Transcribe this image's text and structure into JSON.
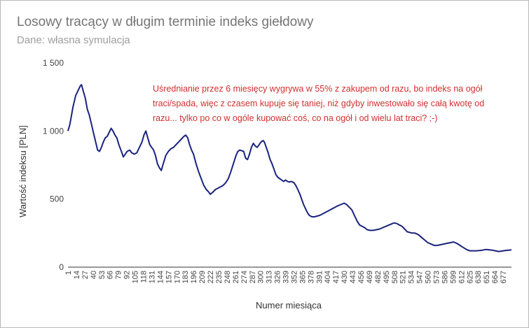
{
  "chart_data": {
    "type": "line",
    "title": "Losowy tracący w długim terminie indeks giełdowy",
    "subtitle": "Dane: własna symulacja",
    "xlabel": "Numer miesiąca",
    "ylabel": "Wartość indeksu [PLN]",
    "ylim": [
      0,
      1500
    ],
    "xlim": [
      1,
      690
    ],
    "yticks": [
      {
        "value": 0,
        "label": "0"
      },
      {
        "value": 500,
        "label": "500"
      },
      {
        "value": 1000,
        "label": "1 000"
      },
      {
        "value": 1500,
        "label": "1 500"
      }
    ],
    "xticks": [
      {
        "value": 1,
        "label": "1"
      },
      {
        "value": 14,
        "label": "14"
      },
      {
        "value": 27,
        "label": "27"
      },
      {
        "value": 40,
        "label": "40"
      },
      {
        "value": 53,
        "label": "53"
      },
      {
        "value": 66,
        "label": "66"
      },
      {
        "value": 79,
        "label": "79"
      },
      {
        "value": 92,
        "label": "92"
      },
      {
        "value": 105,
        "label": "105"
      },
      {
        "value": 118,
        "label": "118"
      },
      {
        "value": 131,
        "label": "131"
      },
      {
        "value": 144,
        "label": "144"
      },
      {
        "value": 157,
        "label": "157"
      },
      {
        "value": 170,
        "label": "170"
      },
      {
        "value": 183,
        "label": "183"
      },
      {
        "value": 196,
        "label": "196"
      },
      {
        "value": 209,
        "label": "209"
      },
      {
        "value": 222,
        "label": "222"
      },
      {
        "value": 235,
        "label": "235"
      },
      {
        "value": 248,
        "label": "248"
      },
      {
        "value": 261,
        "label": "261"
      },
      {
        "value": 274,
        "label": "274"
      },
      {
        "value": 287,
        "label": "287"
      },
      {
        "value": 300,
        "label": "300"
      },
      {
        "value": 313,
        "label": "313"
      },
      {
        "value": 326,
        "label": "326"
      },
      {
        "value": 339,
        "label": "339"
      },
      {
        "value": 352,
        "label": "352"
      },
      {
        "value": 365,
        "label": "365"
      },
      {
        "value": 378,
        "label": "378"
      },
      {
        "value": 391,
        "label": "391"
      },
      {
        "value": 404,
        "label": "404"
      },
      {
        "value": 417,
        "label": "417"
      },
      {
        "value": 430,
        "label": "430"
      },
      {
        "value": 443,
        "label": "443"
      },
      {
        "value": 456,
        "label": "456"
      },
      {
        "value": 469,
        "label": "469"
      },
      {
        "value": 482,
        "label": "482"
      },
      {
        "value": 495,
        "label": "495"
      },
      {
        "value": 508,
        "label": "508"
      },
      {
        "value": 521,
        "label": "521"
      },
      {
        "value": 534,
        "label": "534"
      },
      {
        "value": 547,
        "label": "547"
      },
      {
        "value": 560,
        "label": "560"
      },
      {
        "value": 573,
        "label": "573"
      },
      {
        "value": 586,
        "label": "586"
      },
      {
        "value": 599,
        "label": "599"
      },
      {
        "value": 612,
        "label": "612"
      },
      {
        "value": 625,
        "label": "625"
      },
      {
        "value": 638,
        "label": "638"
      },
      {
        "value": 651,
        "label": "651"
      },
      {
        "value": 664,
        "label": "664"
      },
      {
        "value": 677,
        "label": "677"
      }
    ],
    "series": [
      {
        "color": "#1a237e",
        "points": [
          [
            1,
            1000
          ],
          [
            4,
            1050
          ],
          [
            9,
            1180
          ],
          [
            13,
            1260
          ],
          [
            17,
            1300
          ],
          [
            20,
            1330
          ],
          [
            22,
            1340
          ],
          [
            25,
            1290
          ],
          [
            28,
            1240
          ],
          [
            31,
            1160
          ],
          [
            34,
            1120
          ],
          [
            37,
            1060
          ],
          [
            41,
            980
          ],
          [
            44,
            920
          ],
          [
            47,
            860
          ],
          [
            50,
            850
          ],
          [
            53,
            880
          ],
          [
            56,
            920
          ],
          [
            59,
            950
          ],
          [
            62,
            960
          ],
          [
            65,
            990
          ],
          [
            68,
            1020
          ],
          [
            71,
            1000
          ],
          [
            74,
            970
          ],
          [
            77,
            950
          ],
          [
            80,
            900
          ],
          [
            84,
            850
          ],
          [
            87,
            810
          ],
          [
            90,
            830
          ],
          [
            93,
            850
          ],
          [
            97,
            860
          ],
          [
            100,
            840
          ],
          [
            104,
            830
          ],
          [
            108,
            840
          ],
          [
            112,
            880
          ],
          [
            116,
            920
          ],
          [
            119,
            970
          ],
          [
            122,
            1000
          ],
          [
            125,
            950
          ],
          [
            128,
            900
          ],
          [
            131,
            880
          ],
          [
            134,
            860
          ],
          [
            137,
            820
          ],
          [
            140,
            760
          ],
          [
            143,
            730
          ],
          [
            146,
            710
          ],
          [
            149,
            760
          ],
          [
            153,
            820
          ],
          [
            157,
            850
          ],
          [
            161,
            870
          ],
          [
            165,
            880
          ],
          [
            169,
            900
          ],
          [
            173,
            920
          ],
          [
            177,
            940
          ],
          [
            181,
            960
          ],
          [
            184,
            970
          ],
          [
            187,
            950
          ],
          [
            190,
            900
          ],
          [
            193,
            860
          ],
          [
            196,
            830
          ],
          [
            200,
            760
          ],
          [
            204,
            700
          ],
          [
            208,
            650
          ],
          [
            212,
            600
          ],
          [
            216,
            570
          ],
          [
            220,
            550
          ],
          [
            222,
            535
          ],
          [
            226,
            550
          ],
          [
            230,
            570
          ],
          [
            234,
            580
          ],
          [
            238,
            590
          ],
          [
            242,
            600
          ],
          [
            246,
            620
          ],
          [
            250,
            650
          ],
          [
            254,
            700
          ],
          [
            258,
            760
          ],
          [
            262,
            820
          ],
          [
            265,
            850
          ],
          [
            268,
            860
          ],
          [
            271,
            855
          ],
          [
            274,
            850
          ],
          [
            277,
            800
          ],
          [
            280,
            790
          ],
          [
            283,
            830
          ],
          [
            286,
            880
          ],
          [
            289,
            910
          ],
          [
            292,
            890
          ],
          [
            295,
            880
          ],
          [
            298,
            900
          ],
          [
            301,
            920
          ],
          [
            304,
            930
          ],
          [
            306,
            920
          ],
          [
            309,
            880
          ],
          [
            312,
            840
          ],
          [
            315,
            790
          ],
          [
            318,
            760
          ],
          [
            321,
            720
          ],
          [
            324,
            680
          ],
          [
            327,
            660
          ],
          [
            330,
            650
          ],
          [
            333,
            640
          ],
          [
            336,
            630
          ],
          [
            339,
            640
          ],
          [
            342,
            630
          ],
          [
            345,
            625
          ],
          [
            348,
            630
          ],
          [
            352,
            620
          ],
          [
            355,
            600
          ],
          [
            358,
            570
          ],
          [
            361,
            540
          ],
          [
            364,
            500
          ],
          [
            367,
            460
          ],
          [
            370,
            430
          ],
          [
            373,
            400
          ],
          [
            376,
            380
          ],
          [
            380,
            370
          ],
          [
            384,
            370
          ],
          [
            388,
            375
          ],
          [
            392,
            380
          ],
          [
            396,
            390
          ],
          [
            400,
            400
          ],
          [
            404,
            410
          ],
          [
            408,
            420
          ],
          [
            412,
            430
          ],
          [
            416,
            440
          ],
          [
            420,
            450
          ],
          [
            425,
            460
          ],
          [
            430,
            470
          ],
          [
            434,
            460
          ],
          [
            438,
            440
          ],
          [
            442,
            420
          ],
          [
            446,
            380
          ],
          [
            450,
            340
          ],
          [
            454,
            310
          ],
          [
            458,
            300
          ],
          [
            462,
            290
          ],
          [
            466,
            275
          ],
          [
            470,
            270
          ],
          [
            475,
            270
          ],
          [
            480,
            275
          ],
          [
            485,
            280
          ],
          [
            490,
            290
          ],
          [
            495,
            300
          ],
          [
            500,
            310
          ],
          [
            505,
            320
          ],
          [
            508,
            325
          ],
          [
            512,
            320
          ],
          [
            516,
            310
          ],
          [
            520,
            300
          ],
          [
            524,
            280
          ],
          [
            528,
            260
          ],
          [
            532,
            255
          ],
          [
            536,
            250
          ],
          [
            540,
            250
          ],
          [
            545,
            240
          ],
          [
            550,
            220
          ],
          [
            555,
            200
          ],
          [
            560,
            180
          ],
          [
            565,
            170
          ],
          [
            570,
            160
          ],
          [
            575,
            160
          ],
          [
            580,
            165
          ],
          [
            585,
            170
          ],
          [
            590,
            175
          ],
          [
            595,
            180
          ],
          [
            600,
            185
          ],
          [
            605,
            175
          ],
          [
            610,
            160
          ],
          [
            615,
            145
          ],
          [
            620,
            130
          ],
          [
            625,
            120
          ],
          [
            630,
            120
          ],
          [
            635,
            120
          ],
          [
            640,
            122
          ],
          [
            645,
            125
          ],
          [
            650,
            130
          ],
          [
            655,
            128
          ],
          [
            660,
            125
          ],
          [
            665,
            120
          ],
          [
            670,
            115
          ],
          [
            675,
            118
          ],
          [
            680,
            122
          ],
          [
            685,
            125
          ],
          [
            690,
            127
          ]
        ]
      }
    ],
    "annotation": {
      "lines": [
        "Uśrednianie przez 6 miesięcy wygrywa w 55% z zakupem od razu, bo indeks na ogół",
        "traci/spada, więc z czasem kupuje się taniej, niż gdyby inwestowało się całą kwotę od",
        "razu... tylko po co w ogóle kupować coś, co na ogół i od wielu lat traci? ;-)"
      ],
      "color": "#d32f2f"
    },
    "grid": false,
    "legend": "none"
  }
}
